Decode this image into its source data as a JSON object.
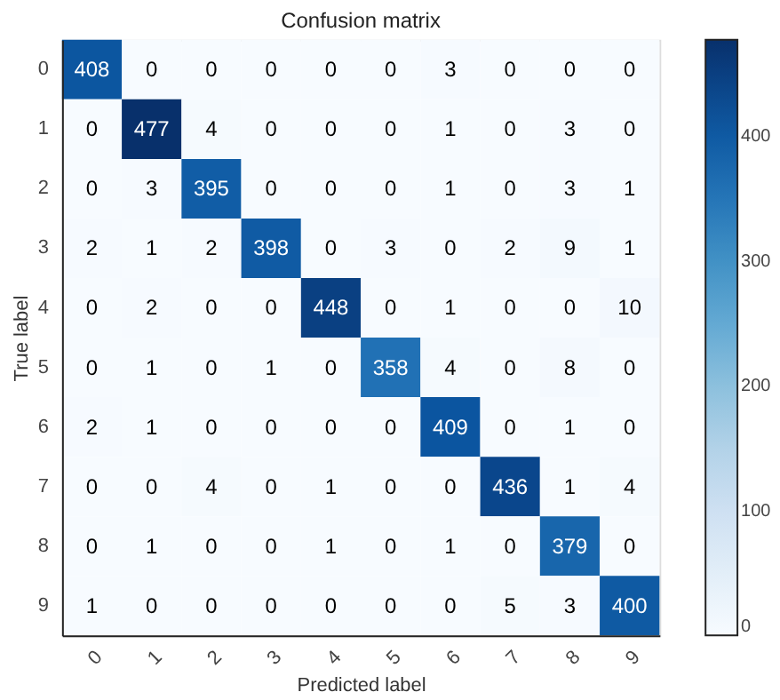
{
  "chart_data": {
    "type": "heatmap",
    "title": "Confusion matrix",
    "xlabel": "Predicted label",
    "ylabel": "True label",
    "categories": [
      "0",
      "1",
      "2",
      "3",
      "4",
      "5",
      "6",
      "7",
      "8",
      "9"
    ],
    "y_categories": [
      "0",
      "1",
      "2",
      "3",
      "4",
      "5",
      "6",
      "7",
      "8",
      "9"
    ],
    "cells": [
      [
        408,
        0,
        0,
        0,
        0,
        0,
        3,
        0,
        0,
        0
      ],
      [
        0,
        477,
        4,
        0,
        0,
        0,
        1,
        0,
        3,
        0
      ],
      [
        0,
        3,
        395,
        0,
        0,
        0,
        1,
        0,
        3,
        1
      ],
      [
        2,
        1,
        2,
        398,
        0,
        3,
        0,
        2,
        9,
        1
      ],
      [
        0,
        2,
        0,
        0,
        448,
        0,
        1,
        0,
        0,
        10
      ],
      [
        0,
        1,
        0,
        1,
        0,
        358,
        4,
        0,
        8,
        0
      ],
      [
        2,
        1,
        0,
        0,
        0,
        0,
        409,
        0,
        1,
        0
      ],
      [
        0,
        0,
        4,
        0,
        1,
        0,
        0,
        436,
        1,
        4
      ],
      [
        0,
        1,
        0,
        0,
        1,
        0,
        1,
        0,
        379,
        0
      ],
      [
        1,
        0,
        0,
        0,
        0,
        0,
        0,
        5,
        3,
        400
      ]
    ],
    "clim": [
      0,
      477
    ],
    "cticks": [
      0,
      100,
      200,
      300,
      400
    ],
    "data_labels": true,
    "grid": false
  }
}
